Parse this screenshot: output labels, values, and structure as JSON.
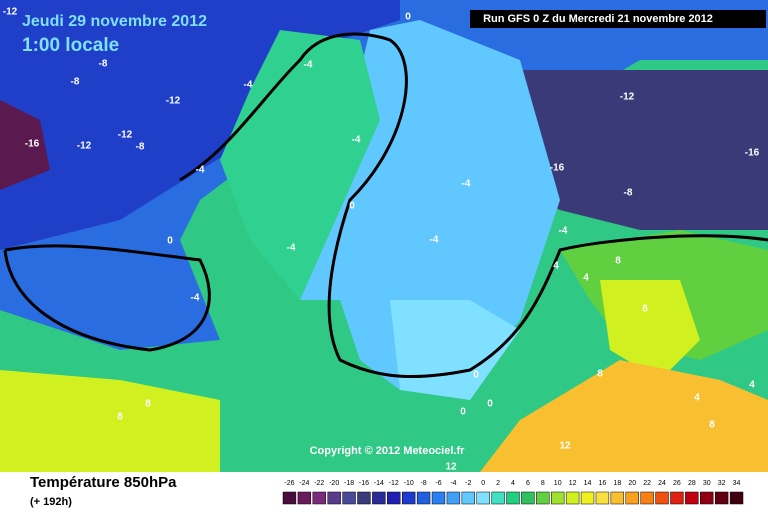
{
  "header": {
    "date": "Jeudi 29 novembre 2012",
    "time": "1:00 locale",
    "run": "Run GFS 0 Z du Mercredi 21 novembre 2012"
  },
  "map": {
    "contour_labels": [
      -12,
      -8,
      -8,
      -12,
      -12,
      -12,
      -16,
      -8,
      -4,
      -4,
      -4,
      -4,
      0,
      0,
      0,
      -4,
      -4,
      -4,
      -4,
      -12,
      -16,
      -16,
      -8,
      -4,
      4,
      8,
      4,
      8,
      8,
      4,
      4,
      8,
      12,
      12,
      0,
      0,
      0,
      8,
      8
    ],
    "copyright": "Copyright © 2012 Meteociel.fr"
  },
  "footer": {
    "title": "Température 850hPa",
    "subtitle": "(+ 192h)"
  },
  "scale": {
    "values": [
      -26,
      -24,
      -22,
      -20,
      -18,
      -16,
      -14,
      -12,
      -10,
      -8,
      -6,
      -4,
      -2,
      0,
      2,
      4,
      6,
      8,
      10,
      12,
      14,
      16,
      18,
      20,
      22,
      24,
      26,
      28,
      30,
      32,
      34
    ],
    "colors": [
      "#4a0d3b",
      "#6b1a5a",
      "#7a2a7a",
      "#5a3a8a",
      "#4a4a9a",
      "#3a3a7a",
      "#2a2a9a",
      "#2020b0",
      "#1a3ad0",
      "#2060e0",
      "#2a80f0",
      "#40a0f8",
      "#60c8ff",
      "#80e0ff",
      "#40e0c0",
      "#20d080",
      "#30c060",
      "#60d040",
      "#a0e030",
      "#d0f020",
      "#f0f020",
      "#f8e040",
      "#f8c030",
      "#f8a020",
      "#f88010",
      "#f05010",
      "#e02010",
      "#c00010",
      "#900010",
      "#600010",
      "#400010"
    ]
  }
}
